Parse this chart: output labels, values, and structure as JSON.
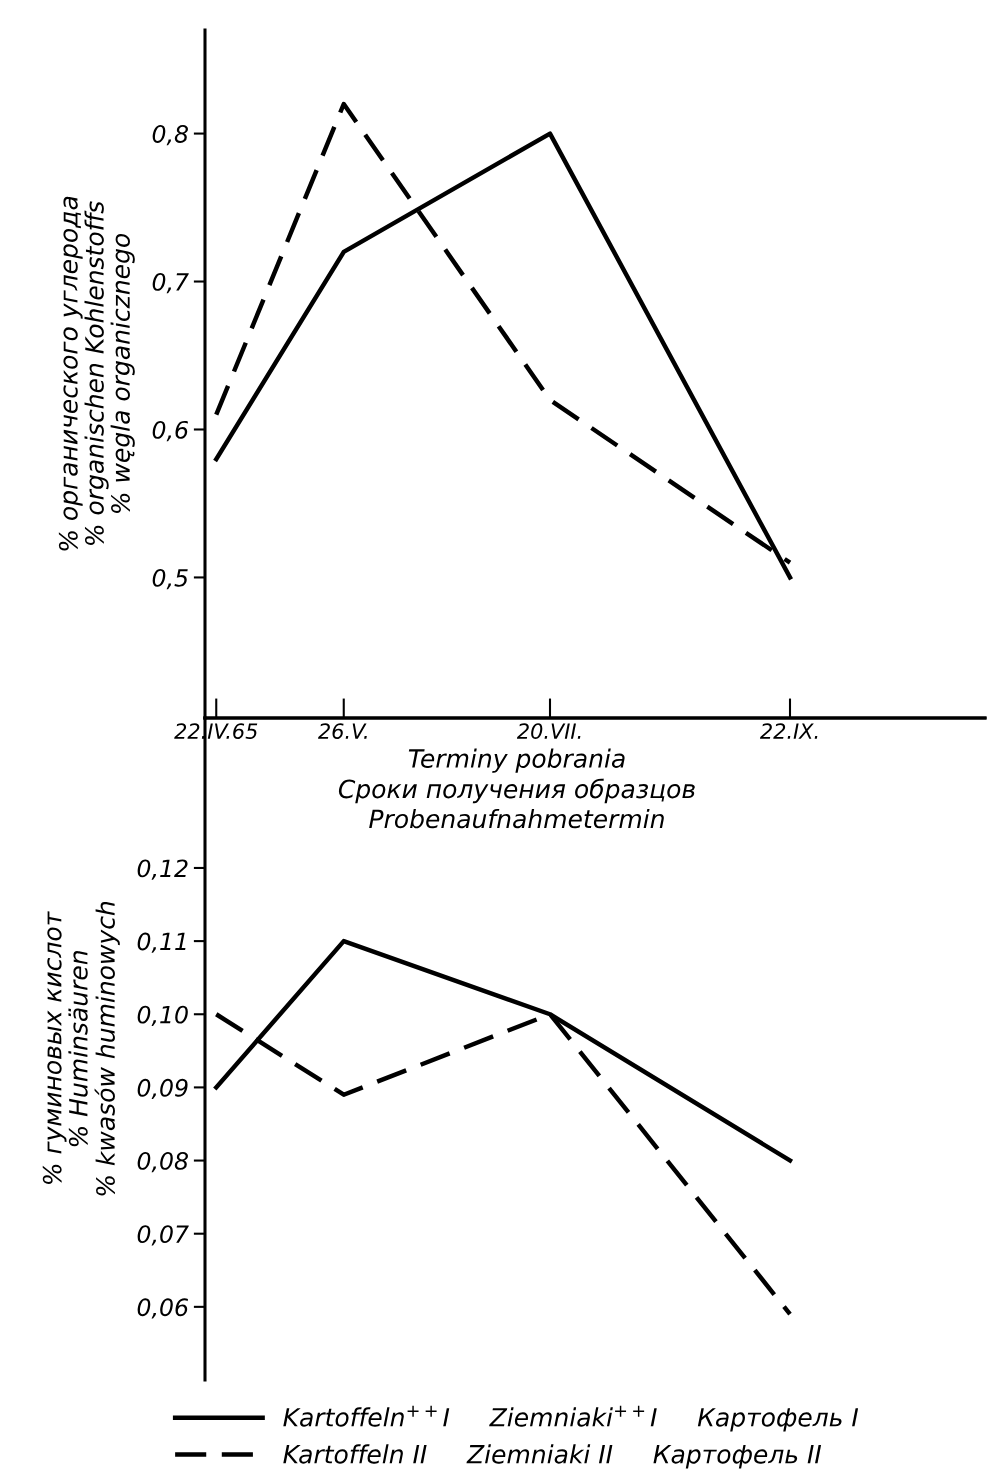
{
  "chart_data": [
    {
      "type": "line",
      "ylabel": "% органического углерода\n% organischen Kohlenstoffs\n% węgla organicznego",
      "xlabel": "Terminy pobrania\nСроки получения образцов\nProbenaufnahmetermin",
      "x": [
        "1965-04-22",
        "1965-05-26",
        "1965-07-20",
        "1965-09-22"
      ],
      "xlim": [
        "1965-04-19",
        "1965-11-13"
      ],
      "xticks": [
        {
          "value": "1965-04-22",
          "label": "22.IV.65"
        },
        {
          "value": "1965-05-26",
          "label": "26.V."
        },
        {
          "value": "1965-07-20",
          "label": "20.VII."
        },
        {
          "value": "1965-09-22",
          "label": "22.IX."
        }
      ],
      "ylim": [
        0.405,
        0.87
      ],
      "yticks": [
        {
          "value": 0.5,
          "label": "0,5"
        },
        {
          "value": 0.6,
          "label": "0,6"
        },
        {
          "value": 0.7,
          "label": "0,7"
        },
        {
          "value": 0.8,
          "label": "0,8"
        }
      ],
      "series": [
        {
          "color": "#000000",
          "line_style": "solid",
          "values": [
            0.58,
            0.72,
            0.8,
            0.5
          ]
        },
        {
          "color": "#000000",
          "line_style": "dashed",
          "values": [
            0.61,
            0.82,
            0.62,
            0.51
          ]
        }
      ],
      "grid": false,
      "legend": false,
      "marker": "none"
    },
    {
      "type": "line",
      "ylabel": "% гуминовых кислот\n% Huminsäuren\n% kwasów huminowych",
      "x": [
        "1965-04-22",
        "1965-05-26",
        "1965-07-20",
        "1965-09-22"
      ],
      "xlim": [
        "1965-04-19",
        "1965-11-13"
      ],
      "ylim": [
        0.05,
        0.1405
      ],
      "yticks": [
        {
          "value": 0.06,
          "label": "0,06"
        },
        {
          "value": 0.07,
          "label": "0,07"
        },
        {
          "value": 0.08,
          "label": "0,08"
        },
        {
          "value": 0.09,
          "label": "0,09"
        },
        {
          "value": 0.1,
          "label": "0,10"
        },
        {
          "value": 0.11,
          "label": "0,11"
        },
        {
          "value": 0.12,
          "label": "0,12"
        }
      ],
      "tick_labels": "y",
      "series": [
        {
          "name": "Kartoffeln$^{++}$I     Ziemniaki$^{++}$I     Картофель I",
          "color": "#000000",
          "line_style": "solid",
          "values": [
            0.09,
            0.11,
            0.1,
            0.08
          ]
        },
        {
          "name": "Kartoffeln II     Ziemniaki II     Картофель II",
          "color": "#000000",
          "line_style": "dashed",
          "values": [
            0.1,
            0.089,
            0.1,
            0.059
          ]
        }
      ],
      "grid": false,
      "legend": "bottom",
      "marker": "none"
    }
  ]
}
